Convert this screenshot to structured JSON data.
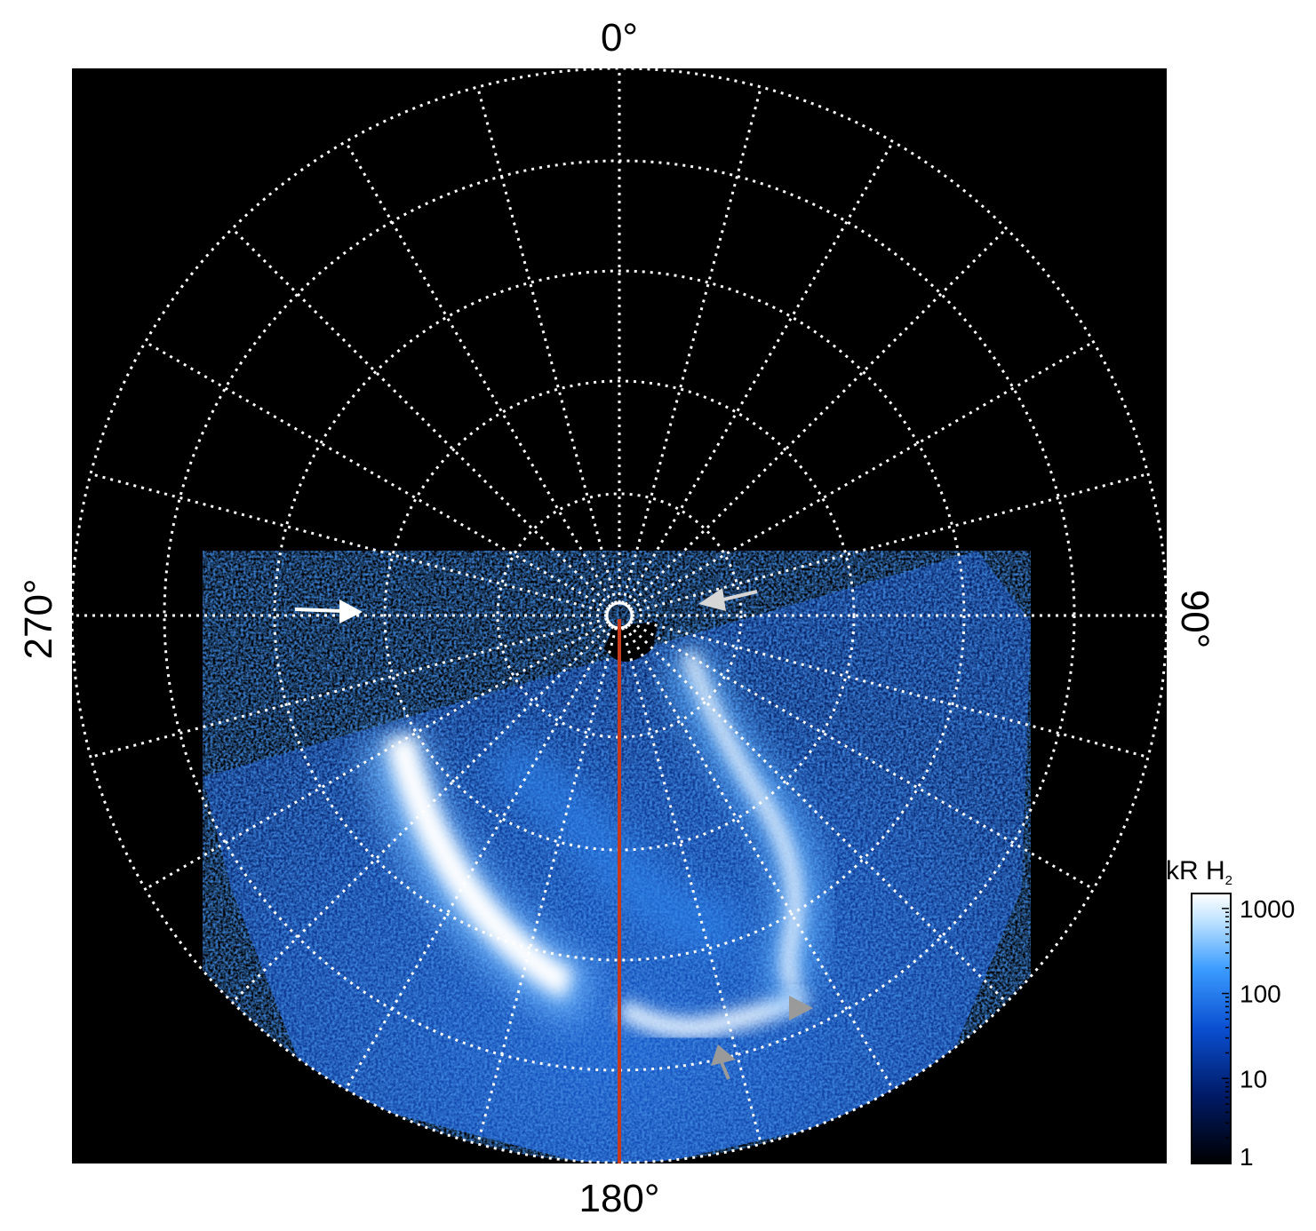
{
  "labels": {
    "top": "0°",
    "right": "90°",
    "bottom": "180°",
    "left": "270°"
  },
  "colorbar": {
    "title_main": "kR H",
    "title_sub": "2",
    "ticks": [
      "1000",
      "100",
      "10",
      "1"
    ],
    "tick_values": [
      1000,
      100,
      10,
      1
    ],
    "colors": [
      "#000000",
      "#001a66",
      "#0a4fd1",
      "#3b9cff",
      "#bfe3ff",
      "#ffffff"
    ]
  },
  "colors": {
    "background": "#000000",
    "grid": "#ffffff",
    "meridian_line": "#c83a1a",
    "arrow_white": "#ffffff",
    "arrow_gray": "#9a9a9a",
    "arrow_lightgray": "#d6d6d6"
  },
  "grid": {
    "longitude_step_deg": 15,
    "latitude_circle_count": 5
  },
  "annotations": [
    {
      "name": "white-arrow-left",
      "color": "#ffffff"
    },
    {
      "name": "lightgray-arrow-upper-right",
      "color": "#d6d6d6"
    },
    {
      "name": "gray-arrow-lower-right",
      "color": "#9a9a9a"
    },
    {
      "name": "gray-arrow-bottom",
      "color": "#9a9a9a"
    }
  ]
}
